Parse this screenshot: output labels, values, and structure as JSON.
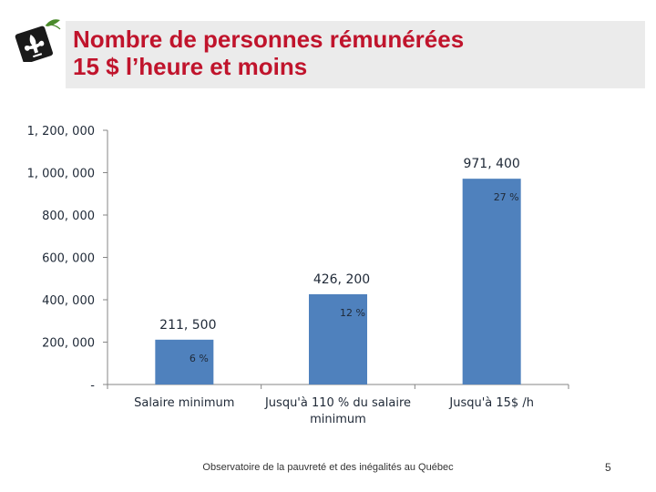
{
  "slide": {
    "title_line1": "Nombre de personnes rémunérées",
    "title_line2": "15 $ l’heure et moins",
    "footer": "Observatoire de la pauvreté et des inégalités au Québec",
    "page_number": "5"
  },
  "colors": {
    "title": "#c0142c",
    "bar": "#4f81bd",
    "axis": "#868686",
    "label": "#1f2937"
  },
  "chart_data": {
    "type": "bar",
    "title": "Nombre de personnes rémunérées 15 $ l’heure et moins",
    "categories": [
      "Salaire minimum",
      "Jusqu'à 110 % du salaire minimum",
      "Jusqu'à 15$ /h"
    ],
    "category_lines": [
      [
        "Salaire minimum"
      ],
      [
        "Jusqu'à 110 % du salaire",
        "minimum"
      ],
      [
        "Jusqu'à 15$ /h"
      ]
    ],
    "values": [
      211500,
      426200,
      971400
    ],
    "value_labels": [
      "211, 500",
      "426, 200",
      "971, 400"
    ],
    "percent_labels": [
      "6 %",
      "12 %",
      "27 %"
    ],
    "ylim": [
      0,
      1200000
    ],
    "yticks": [
      0,
      200000,
      400000,
      600000,
      800000,
      1000000,
      1200000
    ],
    "ytick_labels": [
      "-",
      "200, 000",
      "400, 000",
      "600, 000",
      "800, 000",
      "1, 000, 000",
      "1, 200, 000"
    ],
    "xlabel": "",
    "ylabel": "",
    "grid": false,
    "legend": "none"
  }
}
